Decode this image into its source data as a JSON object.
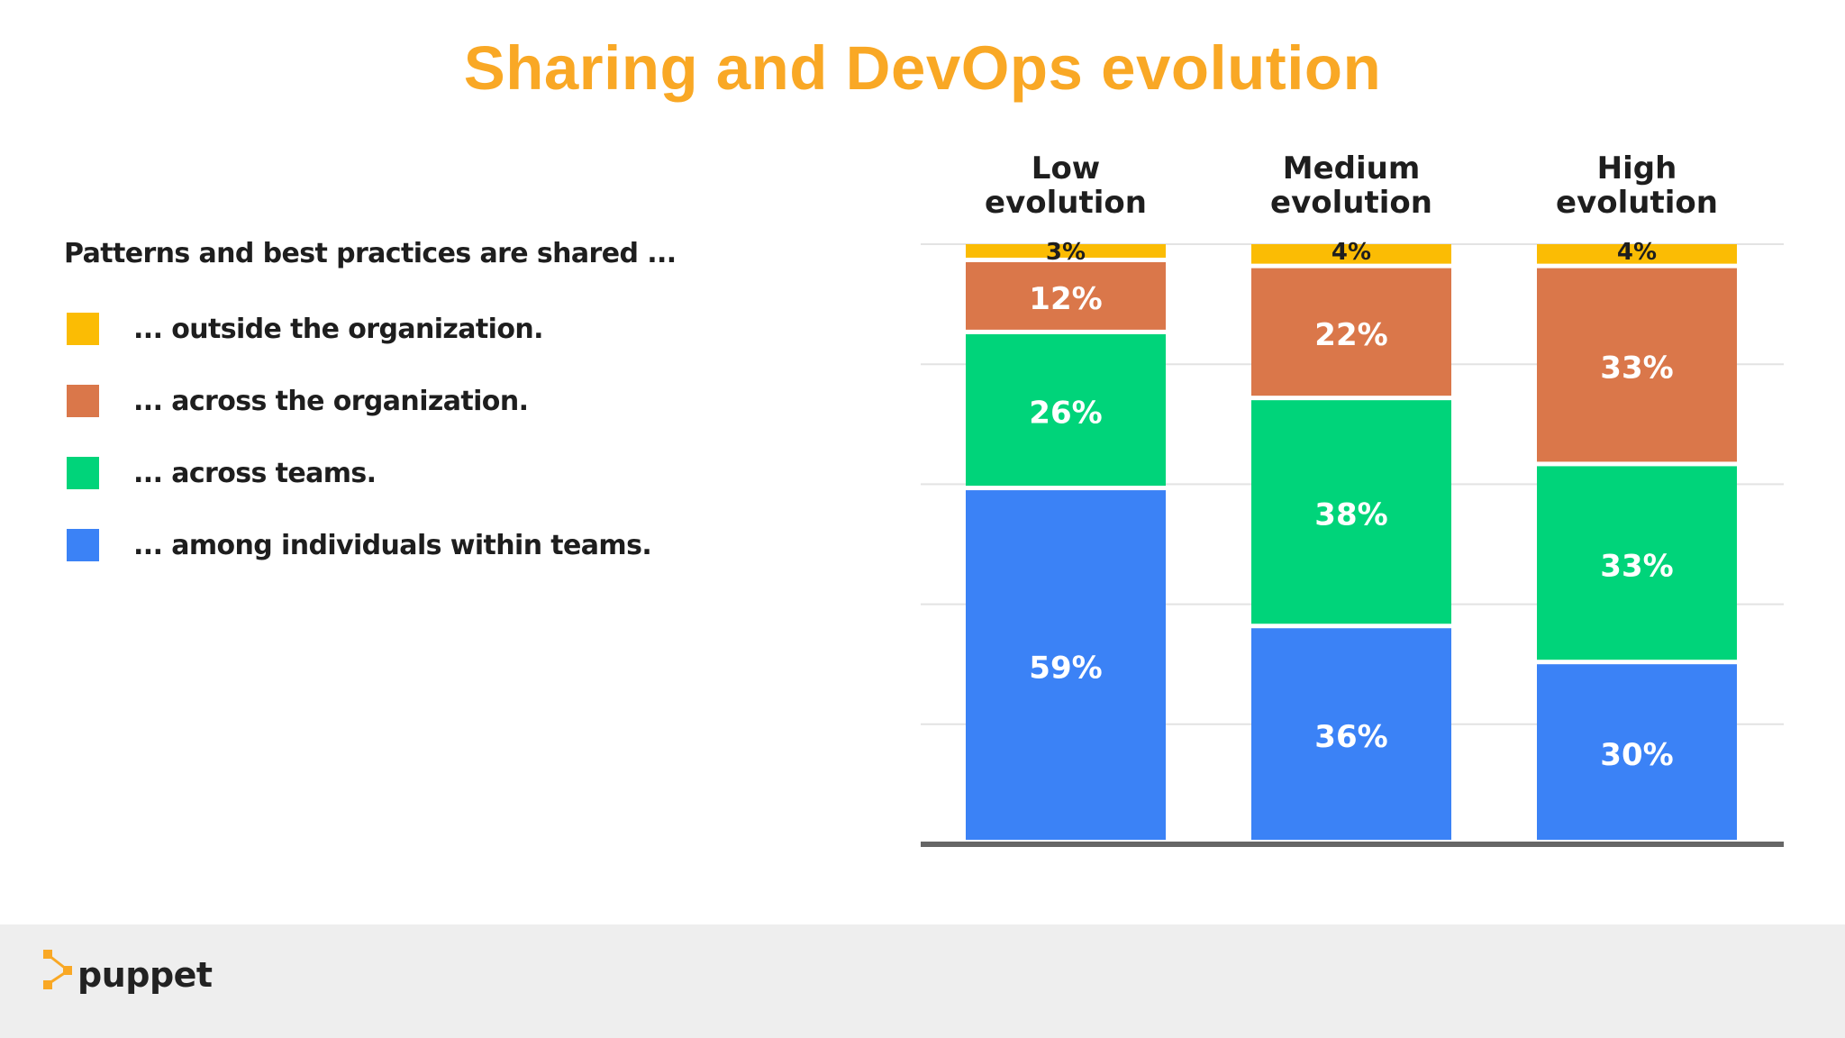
{
  "slide": {
    "title": "Sharing and DevOps evolution"
  },
  "legend": {
    "heading": "Patterns and best practices are shared ...",
    "items": [
      {
        "label": "... outside the organization.",
        "color": "#FBBC04"
      },
      {
        "label": "... across the organization.",
        "color": "#DA774A"
      },
      {
        "label": "... across teams.",
        "color": "#00D47A"
      },
      {
        "label": "... among individuals within teams.",
        "color": "#3B82F6"
      }
    ]
  },
  "chart_data": {
    "type": "bar",
    "stacked": true,
    "categories": [
      "Low evolution",
      "Medium evolution",
      "High evolution"
    ],
    "series": [
      {
        "name": "... among individuals within teams.",
        "color": "#3B82F6",
        "values": [
          59,
          36,
          30
        ]
      },
      {
        "name": "... across teams.",
        "color": "#00D47A",
        "values": [
          26,
          38,
          33
        ]
      },
      {
        "name": "... across the organization.",
        "color": "#DA774A",
        "values": [
          12,
          22,
          33
        ]
      },
      {
        "name": "... outside the organization.",
        "color": "#FBBC04",
        "values": [
          3,
          4,
          4
        ]
      }
    ],
    "value_suffix": "%",
    "ylim": [
      0,
      100
    ],
    "grid": true,
    "legend_position": "left"
  },
  "footer": {
    "brand": "puppet",
    "logo_color": "#F9A825"
  }
}
